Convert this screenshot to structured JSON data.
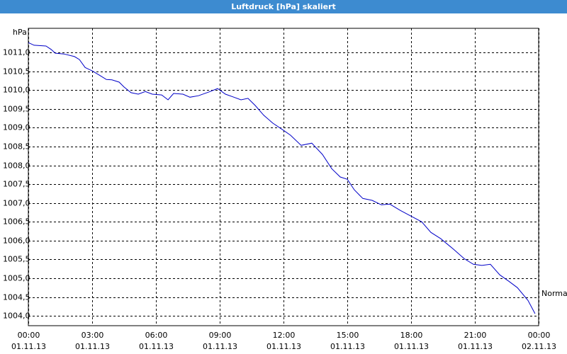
{
  "chart_data": {
    "type": "line",
    "title": "Luftdruck [hPa] skaliert",
    "y_unit": "hPa",
    "xlim": [
      0,
      24
    ],
    "ylim": [
      1003.74,
      1011.64
    ],
    "xticks": [
      {
        "value": 0,
        "label": "00:00",
        "date": "01.11.13"
      },
      {
        "value": 3,
        "label": "03:00",
        "date": "01.11.13"
      },
      {
        "value": 6,
        "label": "06:00",
        "date": "01.11.13"
      },
      {
        "value": 9,
        "label": "09:00",
        "date": "01.11.13"
      },
      {
        "value": 12,
        "label": "12:00",
        "date": "01.11.13"
      },
      {
        "value": 15,
        "label": "15:00",
        "date": "01.11.13"
      },
      {
        "value": 18,
        "label": "18:00",
        "date": "01.11.13"
      },
      {
        "value": 21,
        "label": "21:00",
        "date": "01.11.13"
      },
      {
        "value": 24,
        "label": "00:00",
        "date": "02.11.13"
      }
    ],
    "yticks": [
      {
        "value": 1004,
        "label": "1004,0"
      },
      {
        "value": 1004.5,
        "label": "1004,5"
      },
      {
        "value": 1005,
        "label": "1005,0"
      },
      {
        "value": 1005.5,
        "label": "1005,5"
      },
      {
        "value": 1006,
        "label": "1006,0"
      },
      {
        "value": 1006.5,
        "label": "1006,5"
      },
      {
        "value": 1007,
        "label": "1007,0"
      },
      {
        "value": 1007.5,
        "label": "1007,5"
      },
      {
        "value": 1008,
        "label": "1008,0"
      },
      {
        "value": 1008.5,
        "label": "1008,5"
      },
      {
        "value": 1009,
        "label": "1009,0"
      },
      {
        "value": 1009.5,
        "label": "1009,5"
      },
      {
        "value": 1010,
        "label": "1010,0"
      },
      {
        "value": 1010.5,
        "label": "1010,5"
      },
      {
        "value": 1011,
        "label": "1011,0"
      }
    ],
    "grid": true,
    "x": [
      0,
      0.27,
      0.83,
      1.07,
      1.27,
      1.67,
      2.17,
      2.4,
      2.67,
      3.0,
      3.33,
      3.67,
      3.93,
      4.27,
      4.5,
      4.83,
      5.17,
      5.5,
      5.83,
      6.27,
      6.57,
      6.83,
      7.27,
      7.6,
      8.0,
      8.5,
      8.9,
      9.27,
      9.67,
      10.0,
      10.33,
      10.67,
      11.07,
      11.5,
      12.0,
      12.33,
      12.83,
      13.33,
      13.83,
      14.27,
      14.67,
      15.0,
      15.33,
      15.73,
      16.17,
      16.6,
      17.0,
      17.5,
      18.0,
      18.5,
      18.93,
      19.4,
      20.0,
      20.5,
      20.93,
      21.33,
      21.73,
      22.17,
      22.6,
      23.0,
      23.5,
      23.83
    ],
    "series": [
      {
        "name": "Normal",
        "color": "#0000c8",
        "values": [
          1011.26,
          1011.19,
          1011.17,
          1011.08,
          1010.98,
          1010.96,
          1010.89,
          1010.81,
          1010.6,
          1010.51,
          1010.4,
          1010.28,
          1010.27,
          1010.21,
          1010.08,
          1009.93,
          1009.89,
          1009.96,
          1009.89,
          1009.87,
          1009.74,
          1009.91,
          1009.89,
          1009.81,
          1009.85,
          1009.95,
          1010.04,
          1009.89,
          1009.81,
          1009.74,
          1009.78,
          1009.59,
          1009.33,
          1009.12,
          1008.93,
          1008.8,
          1008.53,
          1008.59,
          1008.29,
          1007.91,
          1007.69,
          1007.63,
          1007.35,
          1007.12,
          1007.07,
          1006.95,
          1006.97,
          1006.8,
          1006.65,
          1006.5,
          1006.22,
          1006.05,
          1005.77,
          1005.52,
          1005.37,
          1005.34,
          1005.37,
          1005.09,
          1004.92,
          1004.75,
          1004.41,
          1004.06
        ]
      }
    ]
  }
}
